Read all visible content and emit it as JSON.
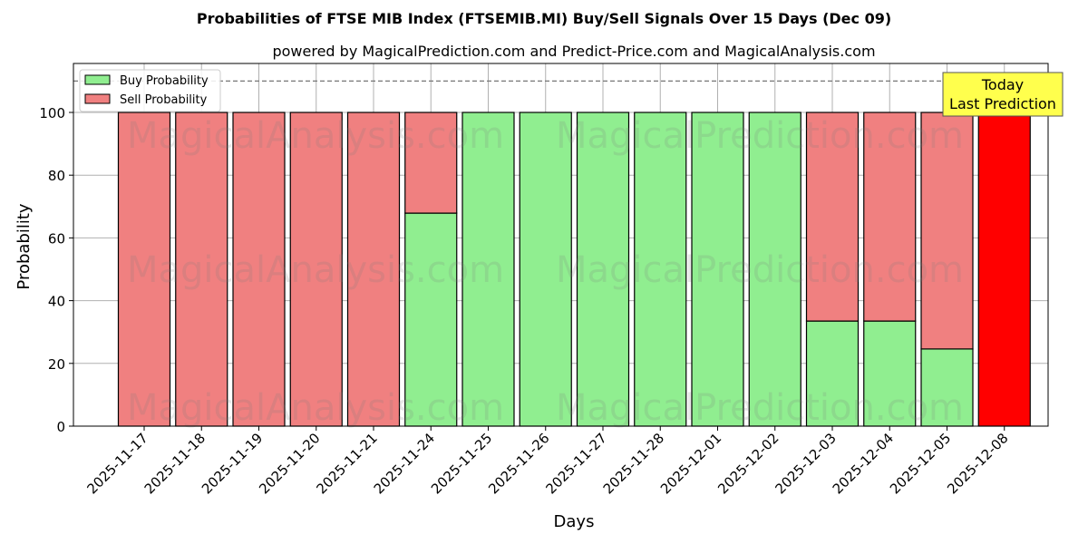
{
  "chart_data": {
    "type": "bar",
    "stacked": true,
    "title": "Probabilities of FTSE MIB Index (FTSEMIB.MI) Buy/Sell Signals Over 15 Days (Dec 09)",
    "subtitle": "powered by MagicalPrediction.com and Predict-Price.com and MagicalAnalysis.com",
    "xlabel": "Days",
    "ylabel": "Probability",
    "ylim": [
      0,
      115
    ],
    "yticks": [
      0,
      20,
      40,
      60,
      80,
      100
    ],
    "categories": [
      "2025-11-17",
      "2025-11-18",
      "2025-11-19",
      "2025-11-20",
      "2025-11-21",
      "2025-11-24",
      "2025-11-25",
      "2025-11-26",
      "2025-11-27",
      "2025-11-28",
      "2025-12-01",
      "2025-12-02",
      "2025-12-03",
      "2025-12-04",
      "2025-12-05",
      "2025-12-08"
    ],
    "series": [
      {
        "name": "Buy Probability",
        "color": "#90ee90",
        "values": [
          0,
          0,
          0,
          0,
          0,
          67.9,
          100,
          100,
          100,
          100,
          100,
          100,
          33.5,
          33.5,
          24.6,
          0
        ]
      },
      {
        "name": "Sell Probability",
        "color": "#f08080",
        "values": [
          100,
          100,
          100,
          100,
          100,
          32.1,
          0,
          0,
          0,
          0,
          0,
          0,
          66.5,
          66.5,
          75.4,
          100
        ]
      }
    ],
    "highlight": {
      "index": 15,
      "color": "#ff0000"
    },
    "reference_line": {
      "y": 110,
      "style": "dashed"
    },
    "annotation": {
      "text_line1": "Today",
      "text_line2": "Last Prediction",
      "bg": "#ffff4d"
    },
    "watermarks": [
      "MagicalAnalysis.com",
      "MagicalPrediction.com"
    ],
    "legend": {
      "position": "upper left",
      "entries": [
        "Buy Probability",
        "Sell Probability"
      ]
    },
    "grid": true
  }
}
